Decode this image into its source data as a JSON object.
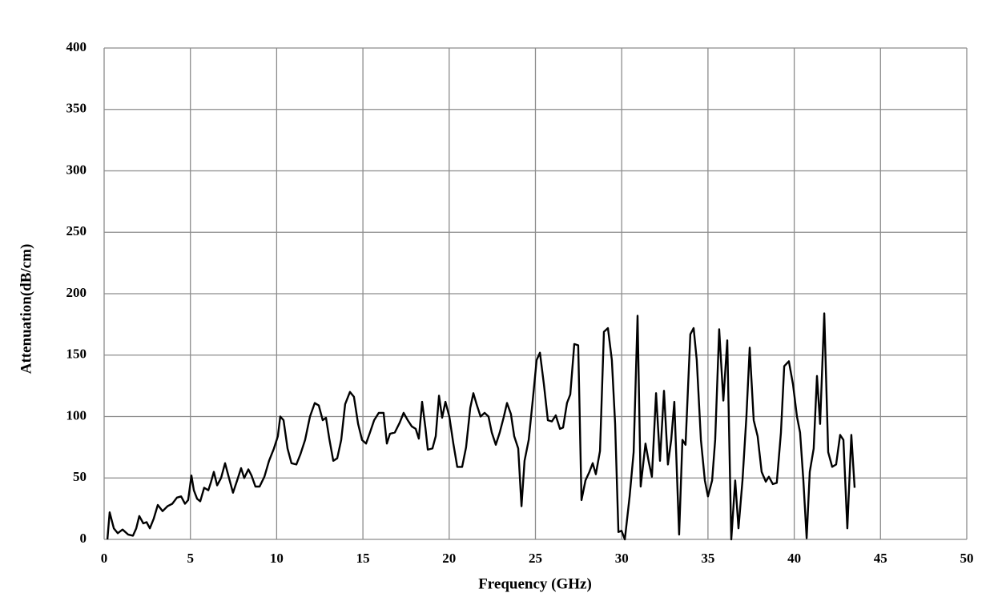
{
  "chart_data": {
    "type": "line",
    "x_label": "Frequency (GHz)",
    "y_label": "Attenuation(dB/cm)",
    "color": "#000000",
    "grid": true,
    "xlim": [
      0,
      50
    ],
    "xticks": [
      0,
      5,
      10,
      15,
      20,
      25,
      30,
      35,
      40,
      45,
      50
    ],
    "ylim": [
      0,
      400
    ],
    "yticks": [
      0,
      50,
      100,
      150,
      200,
      250,
      300,
      350,
      400
    ],
    "x": [
      0.19,
      0.32,
      0.56,
      0.79,
      1.07,
      1.39,
      1.67,
      1.86,
      2.04,
      2.27,
      2.46,
      2.65,
      2.88,
      3.11,
      3.39,
      3.67,
      3.95,
      4.22,
      4.46,
      4.69,
      4.87,
      5.06,
      5.2,
      5.39,
      5.57,
      5.8,
      6.04,
      6.18,
      6.36,
      6.55,
      6.78,
      7.01,
      7.24,
      7.47,
      7.71,
      7.94,
      8.12,
      8.36,
      8.54,
      8.77,
      9.01,
      9.29,
      9.56,
      9.84,
      10.07,
      10.21,
      10.4,
      10.63,
      10.86,
      11.14,
      11.37,
      11.65,
      11.93,
      12.21,
      12.44,
      12.67,
      12.86,
      13.05,
      13.28,
      13.51,
      13.74,
      13.97,
      14.25,
      14.48,
      14.72,
      14.95,
      15.18,
      15.41,
      15.65,
      15.92,
      16.2,
      16.39,
      16.57,
      16.85,
      17.13,
      17.36,
      17.6,
      17.83,
      18.06,
      18.24,
      18.43,
      18.62,
      18.76,
      19.03,
      19.22,
      19.41,
      19.59,
      19.78,
      20.01,
      20.24,
      20.47,
      20.75,
      20.98,
      21.22,
      21.4,
      21.59,
      21.82,
      22.05,
      22.28,
      22.47,
      22.7,
      22.93,
      23.17,
      23.35,
      23.58,
      23.77,
      24.0,
      24.19,
      24.37,
      24.61,
      24.84,
      25.07,
      25.26,
      25.49,
      25.72,
      25.95,
      26.18,
      26.42,
      26.6,
      26.83,
      27.02,
      27.25,
      27.48,
      27.67,
      27.9,
      28.13,
      28.32,
      28.5,
      28.74,
      28.97,
      29.2,
      29.43,
      29.62,
      29.81,
      29.99,
      30.18,
      30.46,
      30.69,
      30.92,
      31.1,
      31.38,
      31.57,
      31.75,
      31.99,
      32.22,
      32.45,
      32.68,
      32.87,
      33.05,
      33.33,
      33.52,
      33.7,
      33.98,
      34.17,
      34.35,
      34.59,
      34.82,
      35.0,
      35.24,
      35.42,
      35.65,
      35.89,
      36.12,
      36.35,
      36.58,
      36.77,
      37.0,
      37.23,
      37.42,
      37.65,
      37.88,
      38.11,
      38.35,
      38.53,
      38.76,
      38.99,
      39.23,
      39.42,
      39.69,
      39.93,
      40.16,
      40.34,
      40.53,
      40.72,
      40.9,
      41.13,
      41.32,
      41.5,
      41.74,
      41.97,
      42.2,
      42.43,
      42.66,
      42.85,
      43.08,
      43.31,
      43.5
    ],
    "values": [
      0,
      22,
      9,
      5,
      8,
      4,
      3,
      9,
      19,
      13,
      14,
      9,
      17,
      28,
      23,
      27,
      29,
      34,
      35,
      29,
      32,
      52,
      40,
      33,
      31,
      42,
      40,
      46,
      55,
      44,
      50,
      62,
      50,
      38,
      48,
      58,
      50,
      57,
      52,
      43,
      43,
      51,
      64,
      74,
      84,
      100,
      97,
      74,
      62,
      61,
      69,
      81,
      100,
      111,
      109,
      97,
      99,
      82,
      64,
      66,
      81,
      110,
      120,
      116,
      94,
      81,
      78,
      87,
      97,
      103,
      103,
      78,
      86,
      87,
      95,
      103,
      97,
      92,
      90,
      82,
      112,
      91,
      73,
      74,
      84,
      117,
      99,
      112,
      100,
      78,
      59,
      59,
      75,
      107,
      119,
      110,
      100,
      103,
      100,
      87,
      77,
      87,
      100,
      111,
      102,
      84,
      74,
      27,
      64,
      81,
      113,
      146,
      152,
      126,
      97,
      96,
      101,
      90,
      91,
      111,
      118,
      159,
      158,
      32,
      48,
      55,
      62,
      53,
      72,
      169,
      172,
      146,
      94,
      6,
      7,
      0,
      35,
      71,
      182,
      43,
      78,
      63,
      51,
      119,
      64,
      121,
      61,
      81,
      112,
      4,
      81,
      77,
      167,
      172,
      146,
      81,
      48,
      35,
      48,
      81,
      171,
      113,
      162,
      0,
      48,
      9,
      48,
      100,
      156,
      97,
      84,
      55,
      47,
      51,
      45,
      46,
      87,
      141,
      145,
      126,
      100,
      87,
      48,
      1,
      55,
      74,
      133,
      94,
      184,
      71,
      59,
      61,
      85,
      81,
      9,
      85,
      42
    ]
  }
}
